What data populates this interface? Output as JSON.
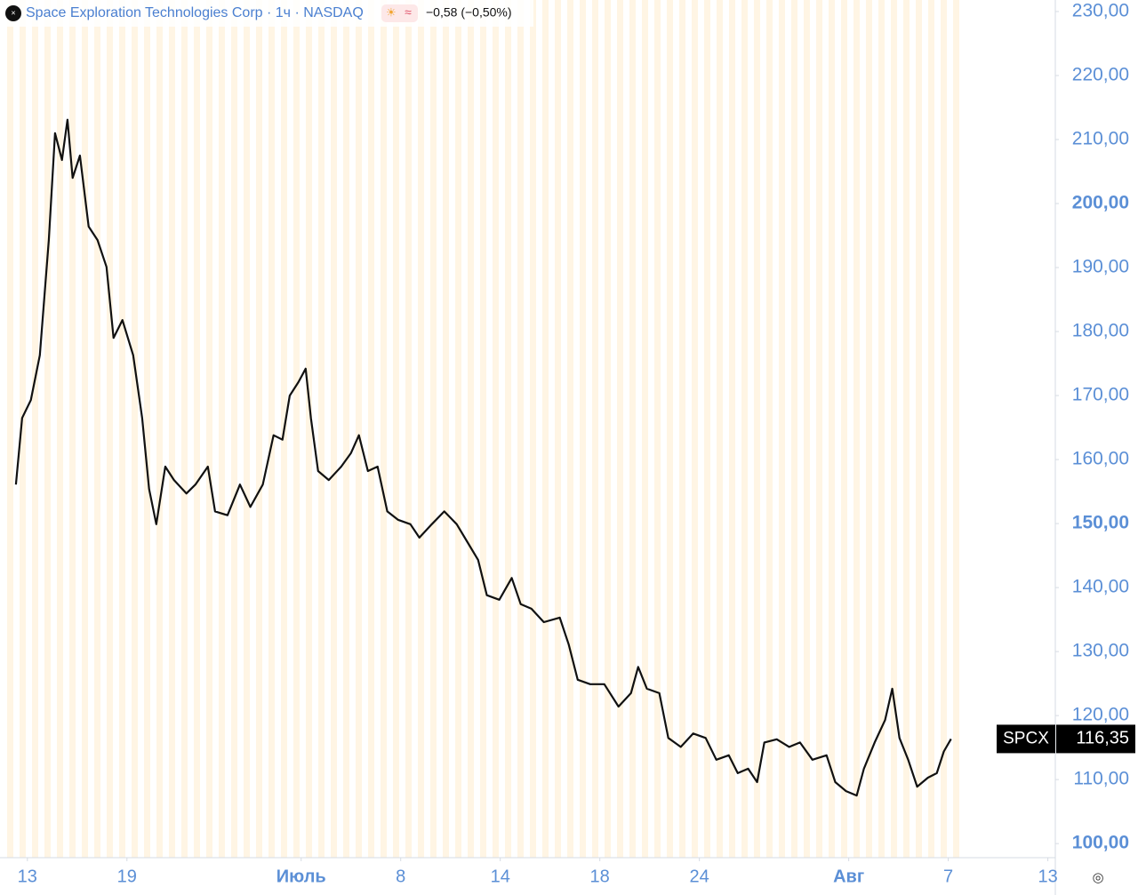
{
  "header": {
    "name": "Space Exploration Technologies Corp",
    "interval": "1ч",
    "exchange": "NASDAQ",
    "change": "−0,58 (−0,50%)",
    "symbol": "SPCX",
    "last_price": "116,35"
  },
  "chart_data": {
    "type": "line",
    "color": "#111111",
    "x": [
      -0.46,
      -0.21,
      0.14,
      0.5,
      0.86,
      1.11,
      1.39,
      1.61,
      1.82,
      2.11,
      2.46,
      2.82,
      3.18,
      3.46,
      3.82,
      4.25,
      4.61,
      4.89,
      5.18,
      5.54,
      5.89,
      6.39,
      6.75,
      7.25,
      7.54,
      8.04,
      8.54,
      8.96,
      9.46,
      9.89,
      10.25,
      10.54,
      10.89,
      11.18,
      11.39,
      11.68,
      12.11,
      12.61,
      13.0,
      13.32,
      13.68,
      14.07,
      14.46,
      14.89,
      15.39,
      15.75,
      16.25,
      16.75,
      17.25,
      17.68,
      18.11,
      18.46,
      18.96,
      19.46,
      19.82,
      20.25,
      20.75,
      21.39,
      21.75,
      22.11,
      22.61,
      23.18,
      23.75,
      24.25,
      24.54,
      24.89,
      25.39,
      25.75,
      26.25,
      26.75,
      27.25,
      27.68,
      28.18,
      28.54,
      28.96,
      29.32,
      29.61,
      30.11,
      30.61,
      31.04,
      31.54,
      32.11,
      32.46,
      32.89,
      33.32,
      33.61,
      34.04,
      34.46,
      34.75,
      35.04,
      35.39,
      35.75,
      36.18,
      36.54,
      36.82,
      37.11
    ],
    "series": [
      {
        "name": "SPCX",
        "color": "#111111",
        "values": [
          156.1,
          166.5,
          169.3,
          176.3,
          194.3,
          211.0,
          206.8,
          213.1,
          204.0,
          207.5,
          196.4,
          194.3,
          190.1,
          179.0,
          181.8,
          176.3,
          166.5,
          155.4,
          149.9,
          158.9,
          156.8,
          154.7,
          156.1,
          158.9,
          151.9,
          151.3,
          156.1,
          152.6,
          156.1,
          163.8,
          163.1,
          170.0,
          172.1,
          174.2,
          166.5,
          158.2,
          156.8,
          158.9,
          161.0,
          163.8,
          158.2,
          158.9,
          151.9,
          150.6,
          149.9,
          147.8,
          149.9,
          151.9,
          149.9,
          147.1,
          144.3,
          138.8,
          138.1,
          141.5,
          137.4,
          136.7,
          134.6,
          135.3,
          131.1,
          125.6,
          124.9,
          124.9,
          121.4,
          123.5,
          127.6,
          124.2,
          123.5,
          116.5,
          115.1,
          117.2,
          116.5,
          113.1,
          113.8,
          111.0,
          111.7,
          109.6,
          115.8,
          116.3,
          115.1,
          115.8,
          113.1,
          113.8,
          109.6,
          108.2,
          107.5,
          111.7,
          115.8,
          119.3,
          124.2,
          116.5,
          113.1,
          108.9,
          110.3,
          111.0,
          114.4,
          116.35
        ]
      }
    ],
    "xlim": [
      -1.1,
      41.3
    ],
    "xticks": [
      {
        "value": 0,
        "label": "13"
      },
      {
        "value": 4,
        "label": "19"
      },
      {
        "value": 11,
        "label": "Июль"
      },
      {
        "value": 15,
        "label": "8"
      },
      {
        "value": 19,
        "label": "14"
      },
      {
        "value": 23,
        "label": "18"
      },
      {
        "value": 27,
        "label": "24"
      },
      {
        "value": 33,
        "label": "Авг"
      },
      {
        "value": 37,
        "label": "7"
      },
      {
        "value": 41,
        "label": "13"
      }
    ],
    "ylim": [
      97.8,
      231.8
    ],
    "yticks": [
      {
        "value": 100,
        "label": "100,00"
      },
      {
        "value": 110,
        "label": "110,00"
      },
      {
        "value": 120,
        "label": "120,00"
      },
      {
        "value": 130,
        "label": "130,00"
      },
      {
        "value": 140,
        "label": "140,00"
      },
      {
        "value": 150,
        "label": "150,00"
      },
      {
        "value": 160,
        "label": "160,00"
      },
      {
        "value": 170,
        "label": "170,00"
      },
      {
        "value": 180,
        "label": "180,00"
      },
      {
        "value": 190,
        "label": "190,00"
      },
      {
        "value": 200,
        "label": "200,00"
      },
      {
        "value": 210,
        "label": "210,00"
      },
      {
        "value": 220,
        "label": "220,00"
      },
      {
        "value": 230,
        "label": "230,00"
      }
    ]
  }
}
